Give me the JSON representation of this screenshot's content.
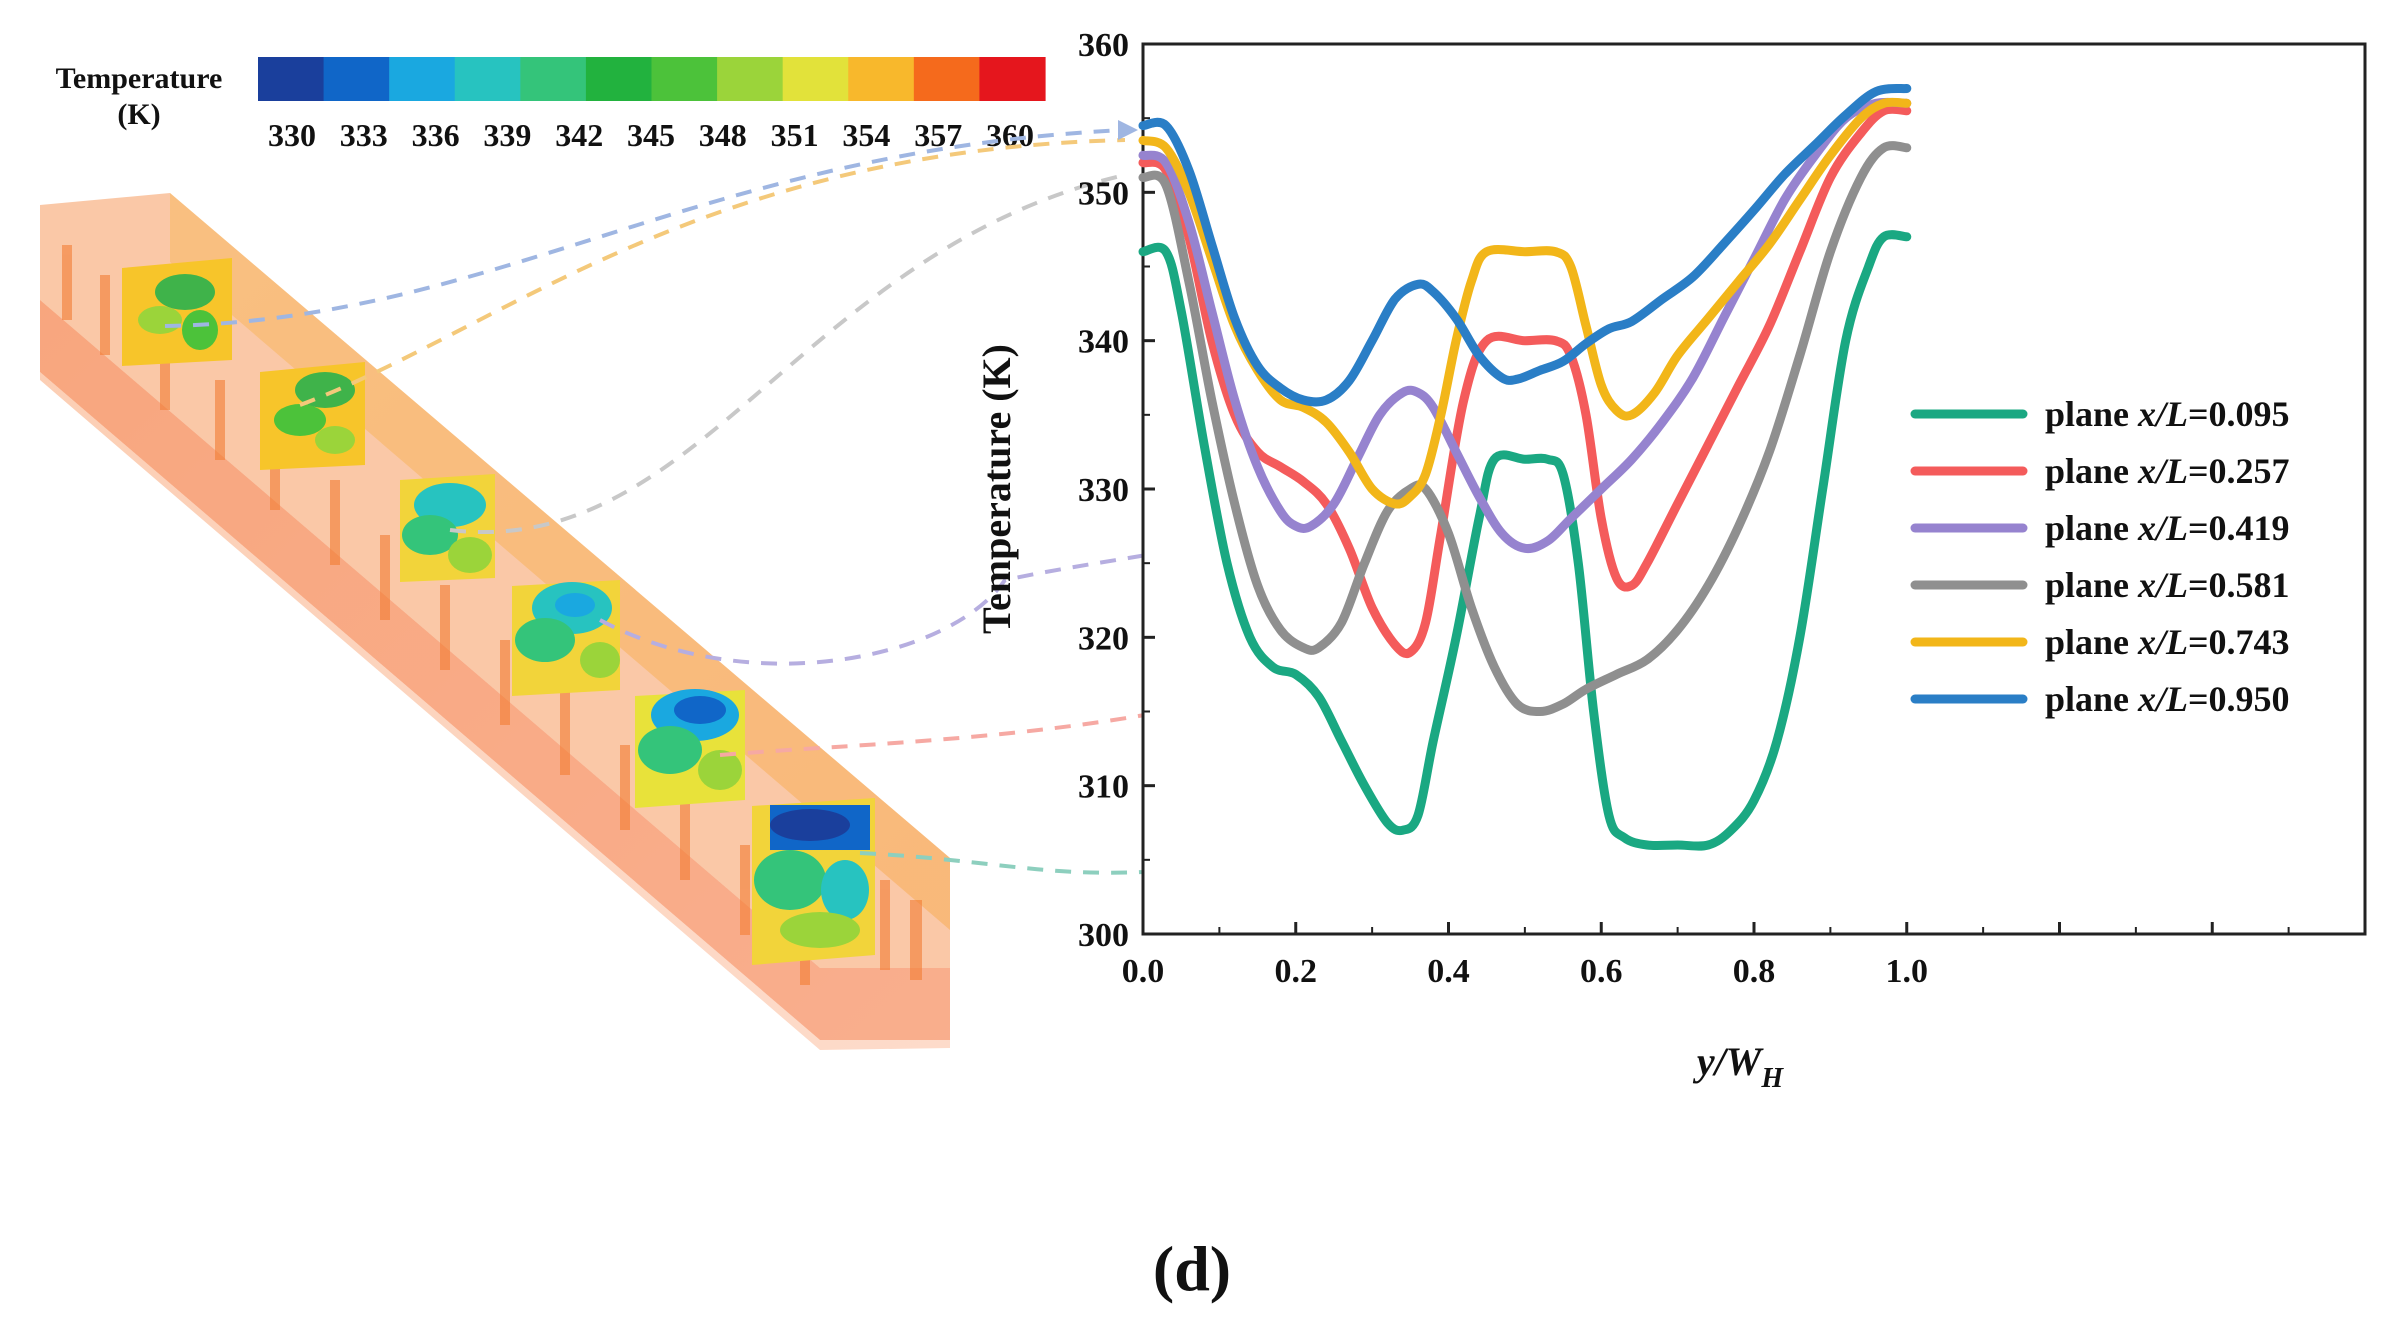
{
  "colorbar": {
    "title_line1": "Temperature",
    "title_line2": "(K)",
    "ticks": [
      "330",
      "333",
      "336",
      "339",
      "342",
      "345",
      "348",
      "351",
      "354",
      "357",
      "360"
    ],
    "colors": [
      "#1a3f9c",
      "#1066c8",
      "#1aa8e0",
      "#27c3c0",
      "#34c47a",
      "#22b23e",
      "#4cc23a",
      "#9bd43a",
      "#e2e23a",
      "#f8b82c",
      "#f56a1c",
      "#e5161d"
    ]
  },
  "chart_data": {
    "type": "line",
    "title": "",
    "xlabel": "y/W",
    "xlabel_subscript": "H",
    "ylabel": "Temperature (K)",
    "xlim": [
      0.0,
      1.6
    ],
    "ylim": [
      300,
      360
    ],
    "xticks": [
      "0.0",
      "0.2",
      "0.4",
      "0.6",
      "0.8",
      "1.0"
    ],
    "xtick_values": [
      0.0,
      0.2,
      0.4,
      0.6,
      0.8,
      1.0
    ],
    "yticks": [
      "300",
      "310",
      "320",
      "330",
      "340",
      "350",
      "360"
    ],
    "ytick_values": [
      300,
      310,
      320,
      330,
      340,
      350,
      360
    ],
    "legend_position": "right",
    "series": [
      {
        "name": "plane x/L=0.095",
        "legend_prefix": "plane ",
        "legend_var": "x/L",
        "legend_value": "=0.095",
        "color": "#1aa882",
        "points": [
          [
            0.0,
            346
          ],
          [
            0.03,
            346
          ],
          [
            0.05,
            342
          ],
          [
            0.08,
            333
          ],
          [
            0.11,
            325
          ],
          [
            0.14,
            320
          ],
          [
            0.17,
            318
          ],
          [
            0.2,
            317.5
          ],
          [
            0.23,
            316
          ],
          [
            0.26,
            313
          ],
          [
            0.29,
            310
          ],
          [
            0.32,
            307.5
          ],
          [
            0.34,
            307
          ],
          [
            0.36,
            308
          ],
          [
            0.38,
            313
          ],
          [
            0.41,
            320
          ],
          [
            0.44,
            328
          ],
          [
            0.46,
            332
          ],
          [
            0.5,
            332
          ],
          [
            0.53,
            332
          ],
          [
            0.55,
            331
          ],
          [
            0.57,
            325
          ],
          [
            0.59,
            315
          ],
          [
            0.61,
            308
          ],
          [
            0.63,
            306.5
          ],
          [
            0.66,
            306
          ],
          [
            0.7,
            306
          ],
          [
            0.74,
            306
          ],
          [
            0.77,
            307
          ],
          [
            0.8,
            309
          ],
          [
            0.83,
            313
          ],
          [
            0.86,
            320
          ],
          [
            0.89,
            330
          ],
          [
            0.92,
            340
          ],
          [
            0.95,
            345
          ],
          [
            0.97,
            347
          ],
          [
            1.0,
            347
          ]
        ]
      },
      {
        "name": "plane x/L=0.257",
        "legend_prefix": "plane ",
        "legend_var": "x/L",
        "legend_value": "=0.257",
        "color": "#f45b5b",
        "points": [
          [
            0.0,
            352
          ],
          [
            0.03,
            351.5
          ],
          [
            0.06,
            347
          ],
          [
            0.09,
            340
          ],
          [
            0.12,
            335
          ],
          [
            0.15,
            332.5
          ],
          [
            0.18,
            331.5
          ],
          [
            0.21,
            330.5
          ],
          [
            0.24,
            329
          ],
          [
            0.27,
            326
          ],
          [
            0.3,
            322
          ],
          [
            0.33,
            319.5
          ],
          [
            0.35,
            319
          ],
          [
            0.37,
            321
          ],
          [
            0.39,
            327
          ],
          [
            0.42,
            336
          ],
          [
            0.45,
            340
          ],
          [
            0.5,
            340
          ],
          [
            0.54,
            340
          ],
          [
            0.56,
            339
          ],
          [
            0.58,
            335
          ],
          [
            0.6,
            328
          ],
          [
            0.62,
            324
          ],
          [
            0.64,
            323.5
          ],
          [
            0.66,
            325
          ],
          [
            0.7,
            329
          ],
          [
            0.74,
            333
          ],
          [
            0.78,
            337
          ],
          [
            0.82,
            341
          ],
          [
            0.86,
            346
          ],
          [
            0.9,
            351
          ],
          [
            0.94,
            354
          ],
          [
            0.97,
            355.5
          ],
          [
            1.0,
            355.5
          ]
        ]
      },
      {
        "name": "plane x/L=0.419",
        "legend_prefix": "plane ",
        "legend_var": "x/L",
        "legend_value": "=0.419",
        "color": "#9683cf",
        "points": [
          [
            0.0,
            352.5
          ],
          [
            0.03,
            352
          ],
          [
            0.06,
            348
          ],
          [
            0.09,
            342
          ],
          [
            0.12,
            336
          ],
          [
            0.15,
            331.5
          ],
          [
            0.18,
            328.5
          ],
          [
            0.2,
            327.5
          ],
          [
            0.22,
            327.5
          ],
          [
            0.25,
            329
          ],
          [
            0.28,
            332
          ],
          [
            0.31,
            335
          ],
          [
            0.34,
            336.5
          ],
          [
            0.36,
            336.5
          ],
          [
            0.38,
            335.5
          ],
          [
            0.41,
            332.5
          ],
          [
            0.44,
            329.5
          ],
          [
            0.47,
            327
          ],
          [
            0.5,
            326
          ],
          [
            0.53,
            326.5
          ],
          [
            0.56,
            328
          ],
          [
            0.6,
            330
          ],
          [
            0.64,
            332
          ],
          [
            0.68,
            334.5
          ],
          [
            0.72,
            337.5
          ],
          [
            0.76,
            341.5
          ],
          [
            0.8,
            345.5
          ],
          [
            0.84,
            349.5
          ],
          [
            0.88,
            352.5
          ],
          [
            0.92,
            355
          ],
          [
            0.96,
            356
          ],
          [
            1.0,
            356
          ]
        ]
      },
      {
        "name": "plane x/L=0.581",
        "legend_prefix": "plane ",
        "legend_var": "x/L",
        "legend_value": "=0.581",
        "color": "#8f8f8f",
        "points": [
          [
            0.0,
            351
          ],
          [
            0.03,
            350.5
          ],
          [
            0.06,
            344
          ],
          [
            0.09,
            336
          ],
          [
            0.12,
            329
          ],
          [
            0.15,
            323.5
          ],
          [
            0.18,
            320.5
          ],
          [
            0.21,
            319.3
          ],
          [
            0.23,
            319.3
          ],
          [
            0.26,
            321
          ],
          [
            0.29,
            325
          ],
          [
            0.32,
            328.5
          ],
          [
            0.35,
            330
          ],
          [
            0.37,
            330
          ],
          [
            0.4,
            327
          ],
          [
            0.43,
            322
          ],
          [
            0.46,
            318
          ],
          [
            0.49,
            315.5
          ],
          [
            0.52,
            315
          ],
          [
            0.55,
            315.5
          ],
          [
            0.58,
            316.5
          ],
          [
            0.62,
            317.5
          ],
          [
            0.66,
            318.5
          ],
          [
            0.7,
            320.5
          ],
          [
            0.74,
            323.5
          ],
          [
            0.78,
            327.5
          ],
          [
            0.82,
            332.5
          ],
          [
            0.86,
            339
          ],
          [
            0.9,
            346
          ],
          [
            0.94,
            351
          ],
          [
            0.97,
            353
          ],
          [
            1.0,
            353
          ]
        ]
      },
      {
        "name": "plane x/L=0.743",
        "legend_prefix": "plane ",
        "legend_var": "x/L",
        "legend_value": "=0.743",
        "color": "#f2b619",
        "points": [
          [
            0.0,
            353.5
          ],
          [
            0.03,
            353
          ],
          [
            0.06,
            350
          ],
          [
            0.09,
            345.5
          ],
          [
            0.12,
            341
          ],
          [
            0.15,
            338
          ],
          [
            0.18,
            336
          ],
          [
            0.21,
            335.5
          ],
          [
            0.24,
            334.5
          ],
          [
            0.27,
            332.5
          ],
          [
            0.3,
            330
          ],
          [
            0.33,
            329
          ],
          [
            0.35,
            329.5
          ],
          [
            0.37,
            331
          ],
          [
            0.39,
            335
          ],
          [
            0.41,
            340
          ],
          [
            0.43,
            344
          ],
          [
            0.45,
            346
          ],
          [
            0.5,
            346
          ],
          [
            0.54,
            346
          ],
          [
            0.56,
            345
          ],
          [
            0.58,
            341
          ],
          [
            0.6,
            337
          ],
          [
            0.62,
            335.3
          ],
          [
            0.64,
            335
          ],
          [
            0.67,
            336.5
          ],
          [
            0.7,
            339
          ],
          [
            0.74,
            341.5
          ],
          [
            0.78,
            344
          ],
          [
            0.82,
            346.5
          ],
          [
            0.86,
            349.5
          ],
          [
            0.9,
            352.5
          ],
          [
            0.94,
            355
          ],
          [
            0.97,
            356
          ],
          [
            1.0,
            356
          ]
        ]
      },
      {
        "name": "plane x/L=0.950",
        "legend_prefix": "plane ",
        "legend_var": "x/L",
        "legend_value": "=0.950",
        "color": "#2a7ec6",
        "points": [
          [
            0.0,
            354.5
          ],
          [
            0.03,
            354.5
          ],
          [
            0.06,
            351.5
          ],
          [
            0.09,
            346.5
          ],
          [
            0.12,
            341.5
          ],
          [
            0.15,
            338.3
          ],
          [
            0.18,
            336.8
          ],
          [
            0.21,
            336
          ],
          [
            0.24,
            336
          ],
          [
            0.27,
            337.3
          ],
          [
            0.3,
            340
          ],
          [
            0.33,
            342.8
          ],
          [
            0.36,
            343.8
          ],
          [
            0.38,
            343.3
          ],
          [
            0.41,
            341.5
          ],
          [
            0.44,
            339
          ],
          [
            0.47,
            337.5
          ],
          [
            0.49,
            337.4
          ],
          [
            0.52,
            338
          ],
          [
            0.55,
            338.6
          ],
          [
            0.58,
            339.8
          ],
          [
            0.61,
            340.8
          ],
          [
            0.64,
            341.3
          ],
          [
            0.68,
            342.8
          ],
          [
            0.72,
            344.3
          ],
          [
            0.76,
            346.5
          ],
          [
            0.8,
            348.8
          ],
          [
            0.84,
            351.2
          ],
          [
            0.88,
            353.2
          ],
          [
            0.92,
            355.2
          ],
          [
            0.96,
            356.8
          ],
          [
            1.0,
            357
          ]
        ]
      }
    ]
  },
  "caption": "(d)"
}
